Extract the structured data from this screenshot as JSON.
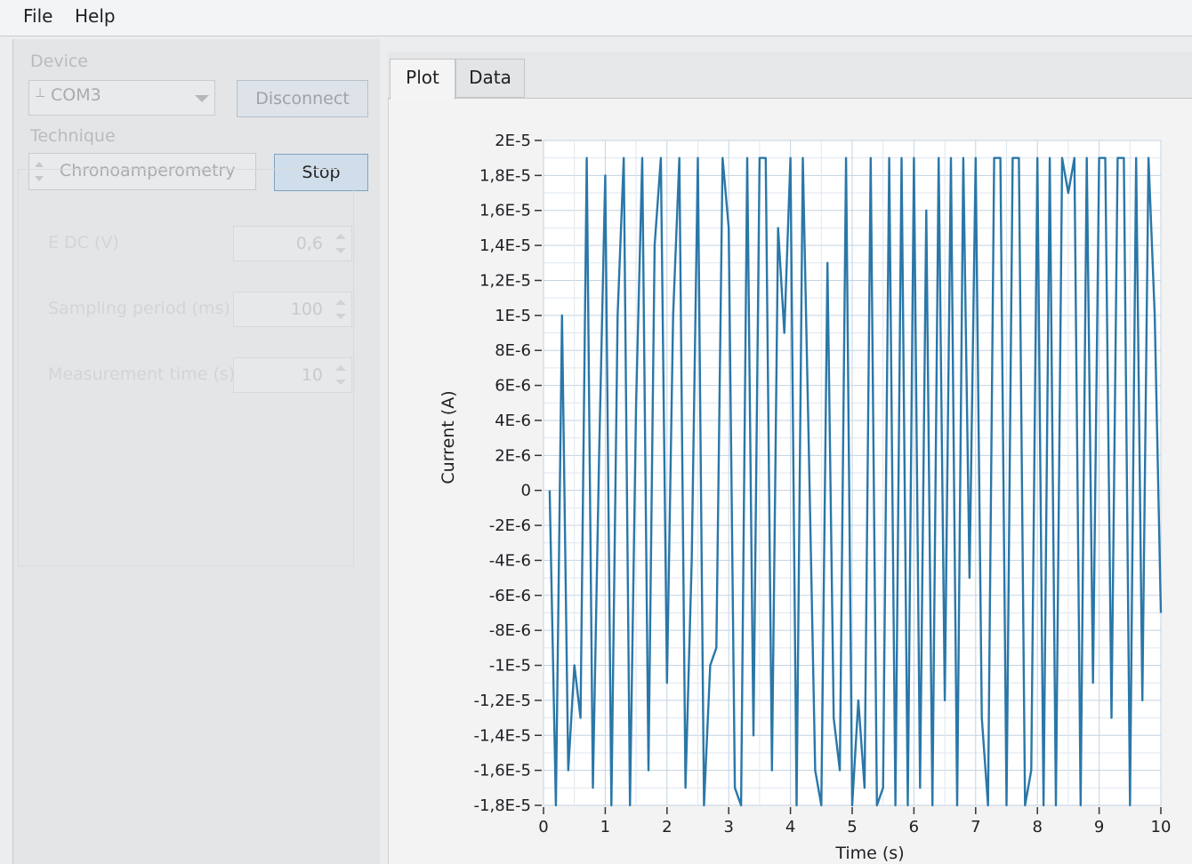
{
  "menu": {
    "file": "File",
    "help": "Help"
  },
  "device": {
    "label": "Device",
    "port": "COM3",
    "port_icon": "io-port-icon",
    "disconnect_label": "Disconnect"
  },
  "technique": {
    "label": "Technique",
    "value": "Chronoamperometry",
    "stop_label": "Stop"
  },
  "params": [
    {
      "label": "E DC (V)",
      "value": "0,6"
    },
    {
      "label": "Sampling period (ms)",
      "value": "100"
    },
    {
      "label": "Measurement time (s)",
      "value": "10"
    }
  ],
  "tabs": {
    "plot": "Plot",
    "data": "Data"
  },
  "colors": {
    "series": "#2a77a8",
    "grid": "#c3d3e3",
    "accent": "#cfdeea"
  },
  "chart_data": {
    "type": "line",
    "title": "",
    "xlabel": "Time (s)",
    "ylabel": "Current (A)",
    "xlim": [
      0,
      10
    ],
    "ylim": [
      -1.8e-05,
      2e-05
    ],
    "x_ticks": [
      "0",
      "1",
      "2",
      "3",
      "4",
      "5",
      "6",
      "7",
      "8",
      "9",
      "10"
    ],
    "y_ticks": [
      "2E-5",
      "1,8E-5",
      "1,6E-5",
      "1,4E-5",
      "1,2E-5",
      "1E-5",
      "8E-6",
      "6E-6",
      "4E-6",
      "2E-6",
      "0",
      "-2E-6",
      "-4E-6",
      "-6E-6",
      "-8E-6",
      "-1E-5",
      "-1,2E-5",
      "-1,4E-5",
      "-1,6E-5",
      "-1,8E-5"
    ],
    "y_tick_values": [
      2e-05,
      1.8e-05,
      1.6e-05,
      1.4e-05,
      1.2e-05,
      1e-05,
      8e-06,
      6e-06,
      4e-06,
      2e-06,
      0,
      -2e-06,
      -4e-06,
      -6e-06,
      -8e-06,
      -1e-05,
      -1.2e-05,
      -1.4e-05,
      -1.6e-05,
      -1.8e-05
    ],
    "series": [
      {
        "name": "Current",
        "x": [
          0.1,
          0.2,
          0.3,
          0.4,
          0.5,
          0.6,
          0.7,
          0.8,
          0.9,
          1.0,
          1.1,
          1.2,
          1.3,
          1.4,
          1.5,
          1.6,
          1.7,
          1.8,
          1.9,
          2.0,
          2.1,
          2.2,
          2.3,
          2.4,
          2.5,
          2.6,
          2.7,
          2.8,
          2.9,
          3.0,
          3.1,
          3.2,
          3.3,
          3.4,
          3.5,
          3.6,
          3.7,
          3.8,
          3.9,
          4.0,
          4.1,
          4.2,
          4.3,
          4.4,
          4.5,
          4.6,
          4.7,
          4.8,
          4.9,
          5.0,
          5.1,
          5.2,
          5.3,
          5.4,
          5.5,
          5.6,
          5.7,
          5.8,
          5.9,
          6.0,
          6.1,
          6.2,
          6.3,
          6.4,
          6.5,
          6.6,
          6.7,
          6.8,
          6.9,
          7.0,
          7.1,
          7.2,
          7.3,
          7.4,
          7.5,
          7.6,
          7.7,
          7.8,
          7.9,
          8.0,
          8.1,
          8.2,
          8.3,
          8.4,
          8.5,
          8.6,
          8.7,
          8.8,
          8.9,
          9.0,
          9.1,
          9.2,
          9.3,
          9.4,
          9.5,
          9.6,
          9.7,
          9.8,
          9.9,
          10.0
        ],
        "y": [
          0.0,
          -1.8e-05,
          1e-05,
          -1.6e-05,
          -1e-05,
          -1.3e-05,
          1.9e-05,
          -1.7e-05,
          2e-06,
          1.8e-05,
          -1.8e-05,
          1e-05,
          1.9e-05,
          -1.8e-05,
          5e-06,
          1.9e-05,
          -1.6e-05,
          1.4e-05,
          1.9e-05,
          -1.1e-05,
          1e-05,
          1.9e-05,
          -1.7e-05,
          -4e-06,
          1.9e-05,
          -1.8e-05,
          -1e-05,
          -9e-06,
          1.9e-05,
          1.5e-05,
          -1.7e-05,
          -1.8e-05,
          1.9e-05,
          -1.4e-05,
          1.9e-05,
          1.9e-05,
          -1.6e-05,
          1.5e-05,
          9e-06,
          1.9e-05,
          -1.8e-05,
          1.9e-05,
          2e-06,
          -1.6e-05,
          -1.8e-05,
          1.3e-05,
          -1.3e-05,
          -1.6e-05,
          1.9e-05,
          -1.8e-05,
          -1.2e-05,
          -1.7e-05,
          1.9e-05,
          -1.8e-05,
          -1.7e-05,
          1.9e-05,
          -1.8e-05,
          1.9e-05,
          -1.8e-05,
          1.9e-05,
          -1.7e-05,
          1.6e-05,
          -1.8e-05,
          1.9e-05,
          -1.2e-05,
          1.9e-05,
          -1.8e-05,
          1.9e-05,
          -5e-06,
          1.9e-05,
          -1.3e-05,
          -1.8e-05,
          1.9e-05,
          1.9e-05,
          -1.8e-05,
          1.9e-05,
          1.9e-05,
          -1.8e-05,
          -1.6e-05,
          1.9e-05,
          -1.8e-05,
          1.9e-05,
          -1.8e-05,
          1.9e-05,
          1.7e-05,
          1.9e-05,
          -1.8e-05,
          1.9e-05,
          -1.1e-05,
          1.9e-05,
          1.9e-05,
          -1.3e-05,
          1.9e-05,
          1.9e-05,
          -1.8e-05,
          1.9e-05,
          -1.2e-05,
          1.9e-05,
          1e-05,
          -7e-06
        ]
      }
    ]
  }
}
